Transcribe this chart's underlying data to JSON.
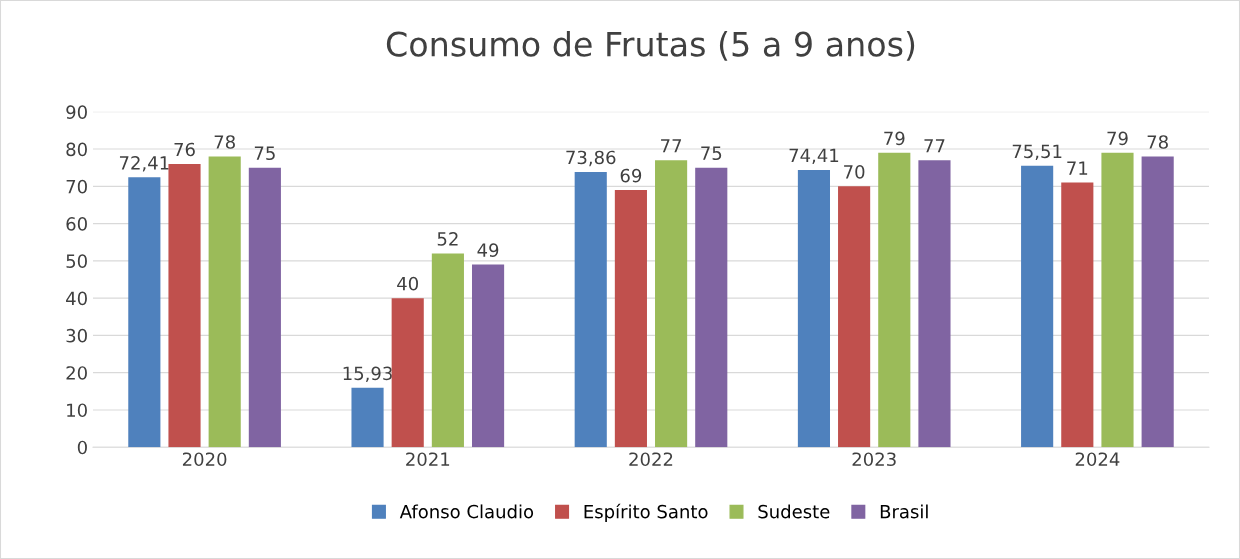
{
  "chart_data": {
    "type": "bar",
    "title": "Consumo de Frutas (5 a 9 anos)",
    "categories": [
      "2020",
      "2021",
      "2022",
      "2023",
      "2024"
    ],
    "series": [
      {
        "name": "Afonso Claudio",
        "color": "#4f81bd",
        "values": [
          72.41,
          15.93,
          73.86,
          74.41,
          75.51
        ],
        "value_labels": [
          "72,41",
          "15,93",
          "73,86",
          "74,41",
          "75,51"
        ]
      },
      {
        "name": "Espírito Santo",
        "color": "#c0504d",
        "values": [
          76,
          40,
          69,
          70,
          71
        ],
        "value_labels": [
          "76",
          "40",
          "69",
          "70",
          "71"
        ]
      },
      {
        "name": "Sudeste",
        "color": "#9bbb59",
        "values": [
          78,
          52,
          77,
          79,
          79
        ],
        "value_labels": [
          "78",
          "52",
          "77",
          "79",
          "79"
        ]
      },
      {
        "name": "Brasil",
        "color": "#8064a2",
        "values": [
          75,
          49,
          75,
          77,
          78
        ],
        "value_labels": [
          "75",
          "49",
          "75",
          "77",
          "78"
        ]
      }
    ],
    "ylim": [
      0,
      90
    ],
    "yticks": [
      0,
      10,
      20,
      30,
      40,
      50,
      60,
      70,
      80,
      90
    ],
    "grid": "y",
    "legend": "bottom"
  }
}
